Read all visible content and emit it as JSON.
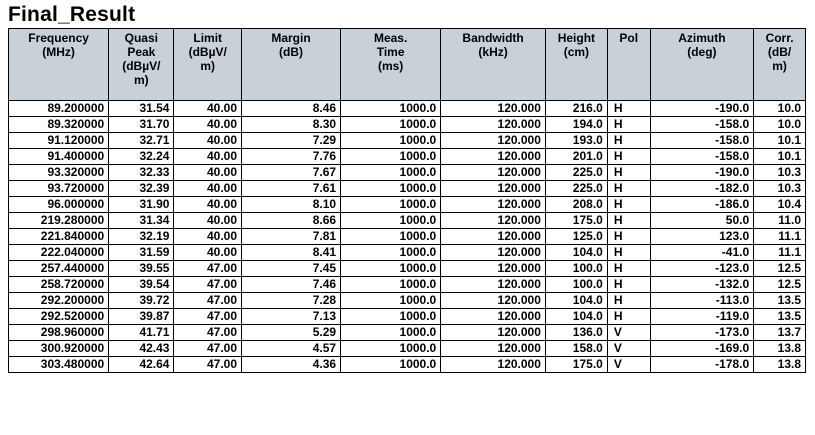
{
  "title": "Final_Result",
  "table": {
    "headers": [
      [
        "Frequency",
        "(MHz)"
      ],
      [
        "Quasi",
        "Peak",
        "(dBµV/",
        "m)"
      ],
      [
        "Limit",
        "(dBµV/",
        "m)"
      ],
      [
        "Margin",
        "(dB)"
      ],
      [
        "Meas.",
        "Time",
        "(ms)"
      ],
      [
        "Bandwidth",
        "(kHz)"
      ],
      [
        "Height",
        "(cm)"
      ],
      [
        "Pol"
      ],
      [
        "Azimuth",
        "(deg)"
      ],
      [
        "Corr.",
        "(dB/",
        "m)"
      ]
    ],
    "rows": [
      [
        "89.200000",
        "31.54",
        "40.00",
        "8.46",
        "1000.0",
        "120.000",
        "216.0",
        "H",
        "-190.0",
        "10.0"
      ],
      [
        "89.320000",
        "31.70",
        "40.00",
        "8.30",
        "1000.0",
        "120.000",
        "194.0",
        "H",
        "-158.0",
        "10.0"
      ],
      [
        "91.120000",
        "32.71",
        "40.00",
        "7.29",
        "1000.0",
        "120.000",
        "193.0",
        "H",
        "-158.0",
        "10.1"
      ],
      [
        "91.400000",
        "32.24",
        "40.00",
        "7.76",
        "1000.0",
        "120.000",
        "201.0",
        "H",
        "-158.0",
        "10.1"
      ],
      [
        "93.320000",
        "32.33",
        "40.00",
        "7.67",
        "1000.0",
        "120.000",
        "225.0",
        "H",
        "-190.0",
        "10.3"
      ],
      [
        "93.720000",
        "32.39",
        "40.00",
        "7.61",
        "1000.0",
        "120.000",
        "225.0",
        "H",
        "-182.0",
        "10.3"
      ],
      [
        "96.000000",
        "31.90",
        "40.00",
        "8.10",
        "1000.0",
        "120.000",
        "208.0",
        "H",
        "-186.0",
        "10.4"
      ],
      [
        "219.280000",
        "31.34",
        "40.00",
        "8.66",
        "1000.0",
        "120.000",
        "175.0",
        "H",
        "50.0",
        "11.0"
      ],
      [
        "221.840000",
        "32.19",
        "40.00",
        "7.81",
        "1000.0",
        "120.000",
        "125.0",
        "H",
        "123.0",
        "11.1"
      ],
      [
        "222.040000",
        "31.59",
        "40.00",
        "8.41",
        "1000.0",
        "120.000",
        "104.0",
        "H",
        "-41.0",
        "11.1"
      ],
      [
        "257.440000",
        "39.55",
        "47.00",
        "7.45",
        "1000.0",
        "120.000",
        "100.0",
        "H",
        "-123.0",
        "12.5"
      ],
      [
        "258.720000",
        "39.54",
        "47.00",
        "7.46",
        "1000.0",
        "120.000",
        "100.0",
        "H",
        "-132.0",
        "12.5"
      ],
      [
        "292.200000",
        "39.72",
        "47.00",
        "7.28",
        "1000.0",
        "120.000",
        "104.0",
        "H",
        "-113.0",
        "13.5"
      ],
      [
        "292.520000",
        "39.87",
        "47.00",
        "7.13",
        "1000.0",
        "120.000",
        "104.0",
        "H",
        "-119.0",
        "13.5"
      ],
      [
        "298.960000",
        "41.71",
        "47.00",
        "5.29",
        "1000.0",
        "120.000",
        "136.0",
        "V",
        "-173.0",
        "13.7"
      ],
      [
        "300.920000",
        "42.43",
        "47.00",
        "4.57",
        "1000.0",
        "120.000",
        "158.0",
        "V",
        "-169.0",
        "13.8"
      ],
      [
        "303.480000",
        "42.64",
        "47.00",
        "4.36",
        "1000.0",
        "120.000",
        "175.0",
        "V",
        "-178.0",
        "13.8"
      ]
    ]
  },
  "colors": {
    "header_background": "#c8d0d8",
    "grid_lines": "#000000",
    "text": "#000000"
  }
}
